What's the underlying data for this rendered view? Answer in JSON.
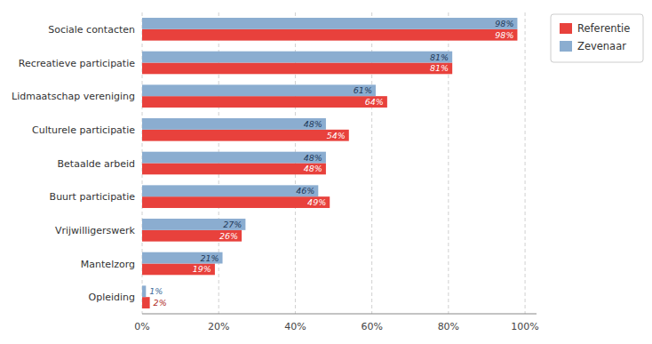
{
  "chart_data": {
    "type": "bar",
    "orientation": "horizontal",
    "categories": [
      "Sociale contacten",
      "Recreatieve participatie",
      "Lidmaatschap vereniging",
      "Culturele participatie",
      "Betaalde arbeid",
      "Buurt participatie",
      "Vrijwilligerswerk",
      "Mantelzorg",
      "Opleiding"
    ],
    "series": [
      {
        "name": "Referentie",
        "color": "#e8413c",
        "values": [
          98,
          81,
          64,
          54,
          48,
          49,
          26,
          19,
          2
        ],
        "value_labels": [
          "98%",
          "81%",
          "64%",
          "54%",
          "48%",
          "49%",
          "26%",
          "19%",
          "2%"
        ]
      },
      {
        "name": "Zevenaar",
        "color": "#8badd0",
        "values": [
          98,
          81,
          61,
          48,
          48,
          46,
          27,
          21,
          1
        ],
        "value_labels": [
          "98%",
          "81%",
          "61%",
          "48%",
          "48%",
          "46%",
          "27%",
          "21%",
          "1%"
        ]
      }
    ],
    "xlim": [
      0,
      103
    ],
    "xticks": [
      {
        "value": 0,
        "label": "0%"
      },
      {
        "value": 20,
        "label": "20%"
      },
      {
        "value": 40,
        "label": "40%"
      },
      {
        "value": 60,
        "label": "60%"
      },
      {
        "value": 80,
        "label": "80%"
      },
      {
        "value": 100,
        "label": "100%"
      }
    ],
    "grid": true,
    "legend": "upper right",
    "data_labels": true
  }
}
